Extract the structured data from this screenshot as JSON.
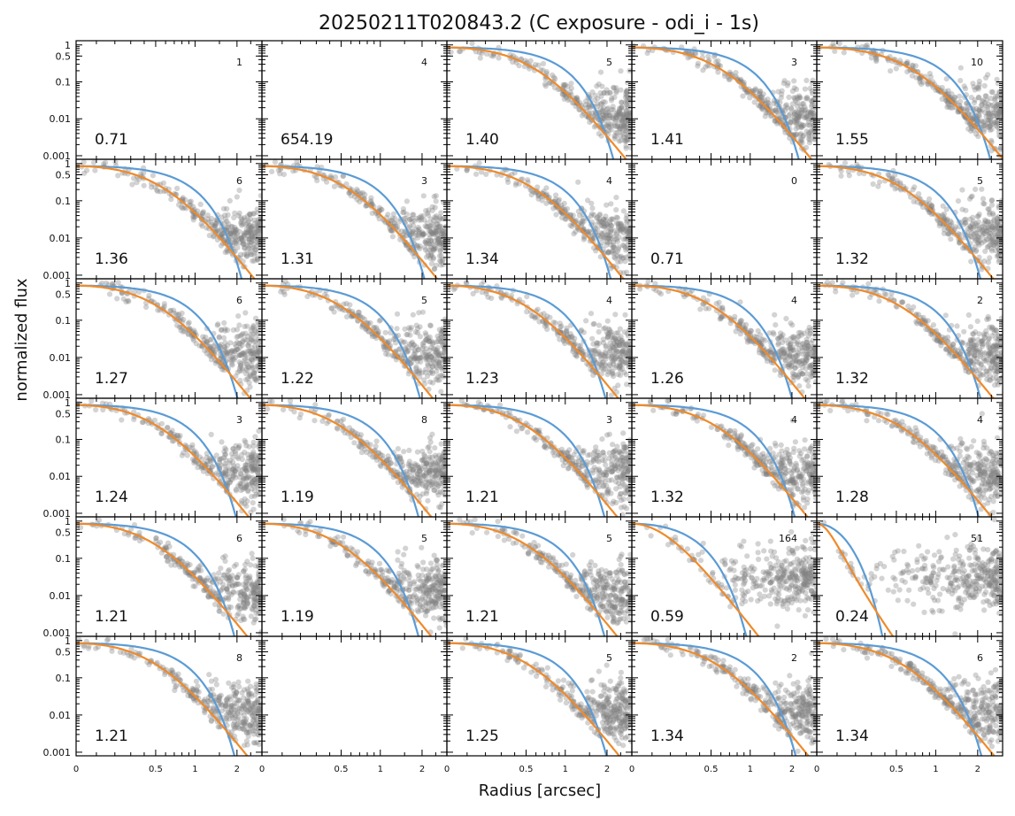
{
  "chart_data": {
    "type": "scatter",
    "title": "20250211T020843.2 (C exposure - odi_i - 1s)",
    "xlabel": "Radius [arcsec]",
    "ylabel": "normalized flux",
    "x_scale": "asinh",
    "x_range": [
      0,
      3.0
    ],
    "x_ticks": [
      0,
      0.5,
      1,
      2
    ],
    "x_tick_labels": [
      "0",
      "0.5",
      "1",
      "2"
    ],
    "y_scale": "log",
    "y_range": [
      0.0008,
      1.3
    ],
    "y_ticks": [
      1,
      0.5,
      0.1,
      0.01,
      0.001
    ],
    "y_tick_labels": [
      "1",
      "0.5",
      "0.1",
      "0.01",
      "0.001"
    ],
    "grid": false,
    "series_colors": {
      "points": "#808080",
      "gaussian_fit": "#5b9bd5",
      "moffat_fit": "#ef8a2a"
    },
    "panels": [
      {
        "fwhm": "0.71",
        "count": "1",
        "has_data": false
      },
      {
        "fwhm": "654.19",
        "count": "4",
        "has_data": false
      },
      {
        "fwhm": "1.40",
        "count": "5",
        "has_data": true
      },
      {
        "fwhm": "1.41",
        "count": "3",
        "has_data": true
      },
      {
        "fwhm": "1.55",
        "count": "10",
        "has_data": true
      },
      {
        "fwhm": "1.36",
        "count": "6",
        "has_data": true
      },
      {
        "fwhm": "1.31",
        "count": "3",
        "has_data": true
      },
      {
        "fwhm": "1.34",
        "count": "4",
        "has_data": true
      },
      {
        "fwhm": "0.71",
        "count": "0",
        "has_data": false
      },
      {
        "fwhm": "1.32",
        "count": "5",
        "has_data": true
      },
      {
        "fwhm": "1.27",
        "count": "6",
        "has_data": true
      },
      {
        "fwhm": "1.22",
        "count": "5",
        "has_data": true
      },
      {
        "fwhm": "1.23",
        "count": "4",
        "has_data": true
      },
      {
        "fwhm": "1.26",
        "count": "4",
        "has_data": true
      },
      {
        "fwhm": "1.32",
        "count": "2",
        "has_data": true
      },
      {
        "fwhm": "1.24",
        "count": "3",
        "has_data": true
      },
      {
        "fwhm": "1.19",
        "count": "8",
        "has_data": true
      },
      {
        "fwhm": "1.21",
        "count": "3",
        "has_data": true
      },
      {
        "fwhm": "1.32",
        "count": "4",
        "has_data": true
      },
      {
        "fwhm": "1.28",
        "count": "4",
        "has_data": true
      },
      {
        "fwhm": "1.21",
        "count": "6",
        "has_data": true
      },
      {
        "fwhm": "1.19",
        "count": "5",
        "has_data": true
      },
      {
        "fwhm": "1.21",
        "count": "5",
        "has_data": true
      },
      {
        "fwhm": "0.59",
        "count": "164",
        "has_data": true
      },
      {
        "fwhm": "0.24",
        "count": "51",
        "has_data": true
      },
      {
        "fwhm": "1.21",
        "count": "8",
        "has_data": true
      },
      {
        "fwhm": "",
        "count": "",
        "has_data": false
      },
      {
        "fwhm": "1.25",
        "count": "5",
        "has_data": true
      },
      {
        "fwhm": "1.34",
        "count": "2",
        "has_data": true
      },
      {
        "fwhm": "1.34",
        "count": "6",
        "has_data": true
      }
    ]
  }
}
